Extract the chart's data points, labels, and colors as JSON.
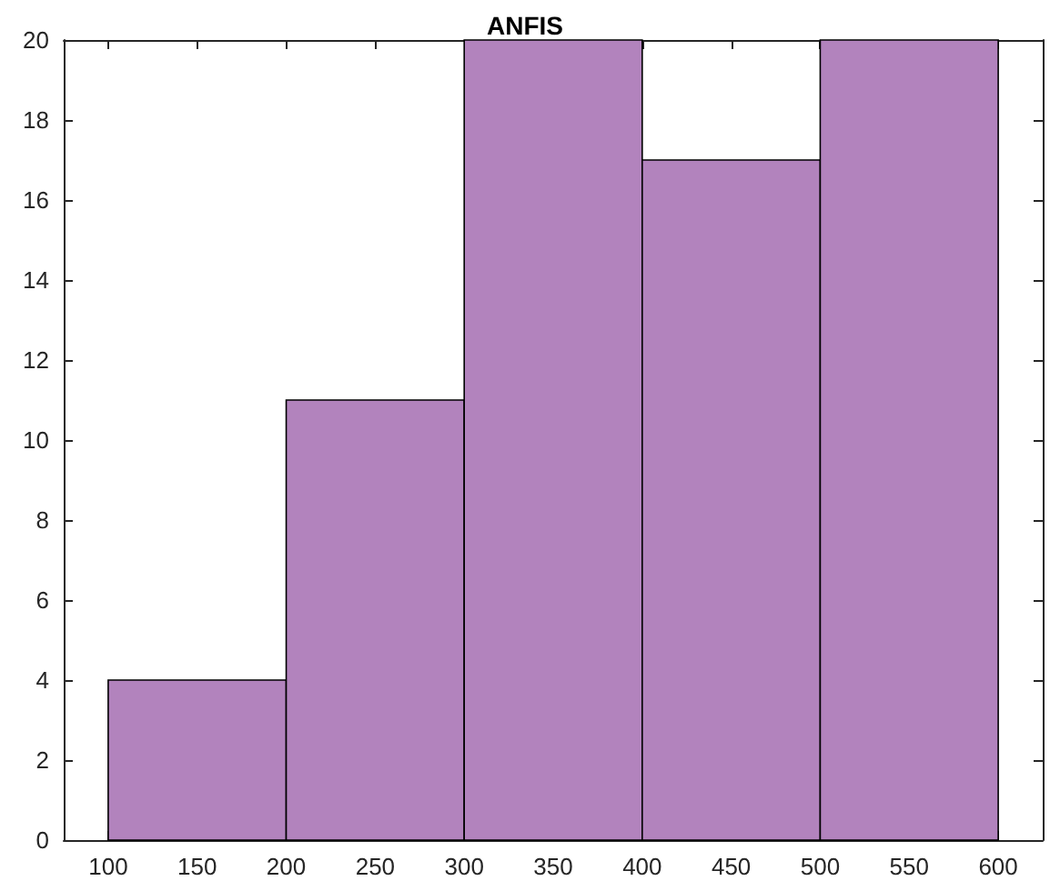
{
  "chart_data": {
    "type": "histogram",
    "title": "ANFIS",
    "bins": [
      100,
      200,
      300,
      400,
      500,
      600
    ],
    "values": [
      4,
      11,
      20,
      17,
      20
    ],
    "color": "#b283bd",
    "xlim": [
      75,
      625
    ],
    "xticks": [
      100,
      150,
      200,
      250,
      300,
      350,
      400,
      450,
      500,
      550,
      600
    ],
    "ylim": [
      0,
      20
    ],
    "yticks": [
      0,
      2,
      4,
      6,
      8,
      10,
      12,
      14,
      16,
      18,
      20
    ],
    "tick_labels": true
  }
}
